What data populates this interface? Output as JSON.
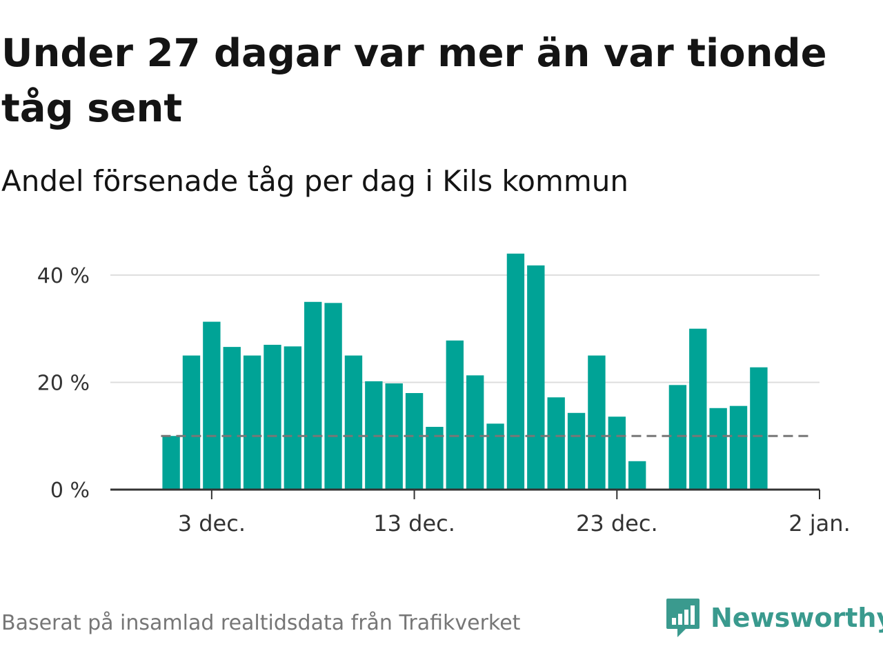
{
  "title": "Under 27 dagar var mer än var tionde tåg sent",
  "subtitle": "Andel försenade tåg per dag i Kils kommun",
  "footer": "Baserat på insamlad realtidsdata från Trafikverket",
  "brand": "Newsworthy",
  "colors": {
    "bar": "#00a396",
    "grid": "#dddddd",
    "axis": "#333333",
    "reference": "#777777",
    "brand": "#3a9a8e"
  },
  "chart_data": {
    "type": "bar",
    "x_type": "date",
    "x": [
      "2023-12-01",
      "2023-12-02",
      "2023-12-03",
      "2023-12-04",
      "2023-12-05",
      "2023-12-06",
      "2023-12-07",
      "2023-12-08",
      "2023-12-09",
      "2023-12-10",
      "2023-12-11",
      "2023-12-12",
      "2023-12-13",
      "2023-12-14",
      "2023-12-15",
      "2023-12-16",
      "2023-12-17",
      "2023-12-18",
      "2023-12-19",
      "2023-12-20",
      "2023-12-21",
      "2023-12-22",
      "2023-12-23",
      "2023-12-24",
      "2023-12-25",
      "2023-12-26",
      "2023-12-27",
      "2023-12-28",
      "2023-12-29",
      "2023-12-30",
      "2023-12-31",
      "2024-01-01"
    ],
    "values": [
      10,
      25,
      31.3,
      26.6,
      25,
      27,
      26.7,
      35,
      34.8,
      25,
      20.2,
      19.8,
      18,
      11.7,
      27.8,
      21.3,
      12.3,
      44,
      41.8,
      17.2,
      14.3,
      25,
      13.6,
      5.3,
      null,
      19.5,
      30,
      15.2,
      15.6,
      22.8,
      null,
      null
    ],
    "xticks": [
      {
        "date": "2023-12-03",
        "label": "3 dec."
      },
      {
        "date": "2023-12-13",
        "label": "13 dec."
      },
      {
        "date": "2023-12-23",
        "label": "23 dec."
      },
      {
        "date": "2024-01-02",
        "label": "2 jan."
      }
    ],
    "yticks": [
      {
        "value": 0,
        "label": "0 %"
      },
      {
        "value": 20,
        "label": "20 %"
      },
      {
        "value": 40,
        "label": "40 %"
      }
    ],
    "xlim": [
      "2023-11-28",
      "2024-01-02"
    ],
    "ylim": [
      0,
      45
    ],
    "reference_line": {
      "value": 10,
      "style": "dashed",
      "from": "2023-12-01",
      "to": "2024-01-01"
    },
    "grid": true
  }
}
